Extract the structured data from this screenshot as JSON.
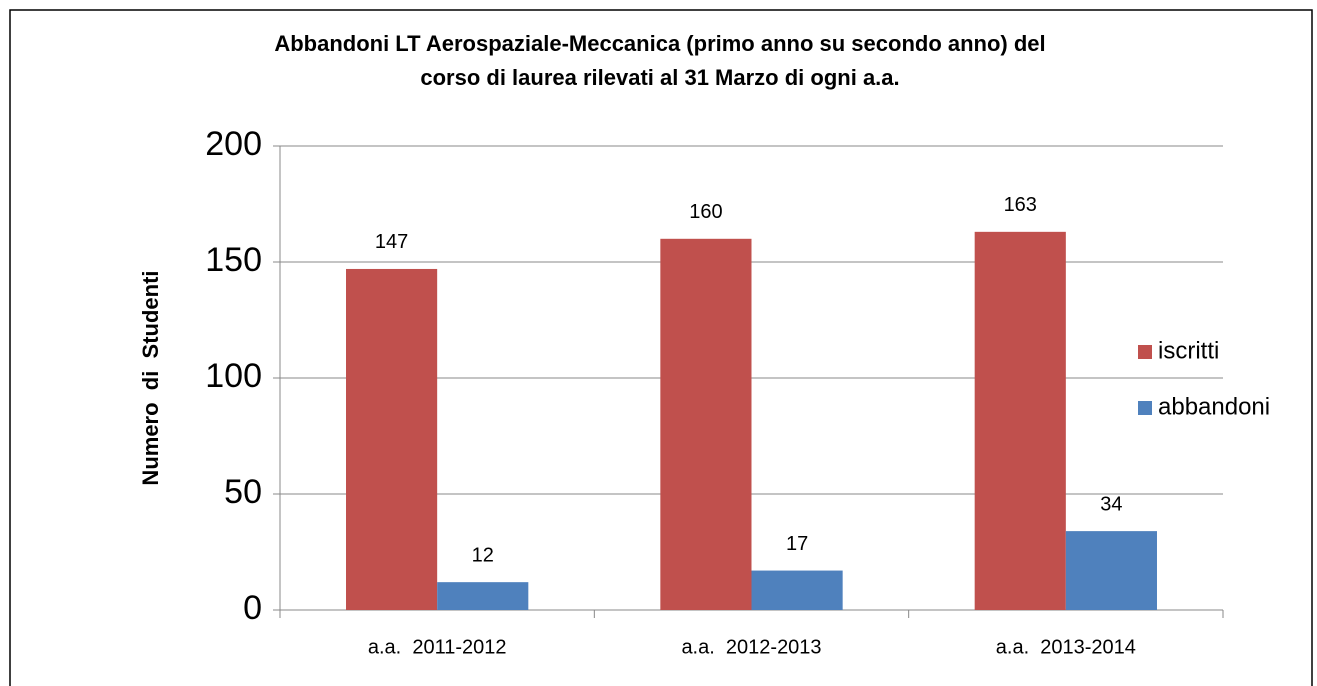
{
  "chart_data": {
    "type": "bar",
    "title": [
      "Abbandoni LT Aerospaziale-Meccanica (primo anno su secondo anno) del",
      "corso di laurea rilevati al 31 Marzo di ogni a.a."
    ],
    "y_label": "Numero  di  Studenti",
    "categories": [
      "a.a.  2011-2012",
      "a.a.  2012-2013",
      "a.a.  2013-2014"
    ],
    "series": [
      {
        "name": "iscritti",
        "color": "#c0504d",
        "values": [
          147,
          160,
          163
        ]
      },
      {
        "name": "abbandoni",
        "color": "#4f81bd",
        "values": [
          12,
          17,
          34
        ]
      }
    ],
    "ylim": [
      0,
      200
    ],
    "yticks": [
      0,
      50,
      100,
      150,
      200
    ],
    "grid": true,
    "legend": "right"
  }
}
